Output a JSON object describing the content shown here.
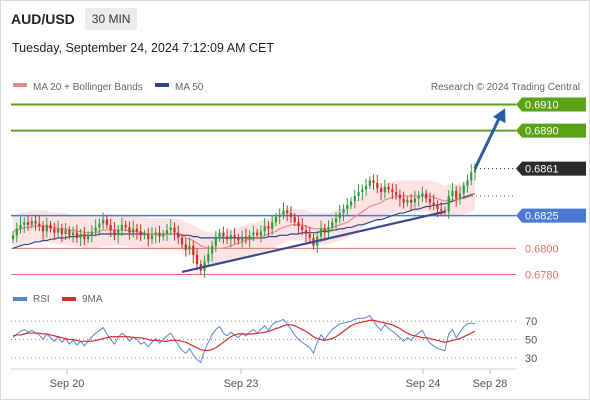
{
  "header": {
    "symbol": "AUD/USD",
    "timeframe": "30 MIN"
  },
  "datetime": "Tuesday, September 24, 2024 7:12:09 AM CET",
  "legend": {
    "ma20": "MA 20 + Bollinger Bands",
    "ma50": "MA 50",
    "copyright": "Research © 2024 Trading Central"
  },
  "rsi_legend": {
    "rsi": "RSI",
    "ma": "9MA"
  },
  "colors": {
    "ma20": "#e98a8a",
    "ma50": "#2c4a86",
    "bands": "#fde3e3",
    "up": "#2f9d3f",
    "down": "#c8302a",
    "target": "#5aa216",
    "pivot": "#4a78d4",
    "support": "#e46e6e",
    "rsi": "#5b86d6",
    "rsi_ma": "#d32f2f",
    "arrow": "#2e5c9e",
    "trendline": "#3a4a8c"
  },
  "chart_data": [
    {
      "type": "candlestick",
      "title": "AUD/USD",
      "subtitle": "30 MIN",
      "x_ticks": [
        "Sep 20",
        "Sep 23",
        "Sep 24",
        "Sep 28"
      ],
      "ylim": [
        0.6772,
        0.6918
      ],
      "levels": [
        {
          "label": "0.6910",
          "value": 0.691,
          "kind": "target"
        },
        {
          "label": "0.6890",
          "value": 0.689,
          "kind": "target"
        },
        {
          "label": "0.6861",
          "value": 0.6861,
          "kind": "last"
        },
        {
          "label": "0.6825",
          "value": 0.6825,
          "kind": "pivot"
        },
        {
          "label": "0.6800",
          "value": 0.68,
          "kind": "support"
        },
        {
          "label": "0.6780",
          "value": 0.678,
          "kind": "support"
        }
      ],
      "closes": [
        0.681,
        0.6815,
        0.6818,
        0.682,
        0.6818,
        0.6821,
        0.6819,
        0.6817,
        0.6813,
        0.6818,
        0.6815,
        0.6812,
        0.6815,
        0.6811,
        0.6814,
        0.681,
        0.6812,
        0.6808,
        0.6811,
        0.6807,
        0.681,
        0.6813,
        0.6816,
        0.6819,
        0.6822,
        0.6818,
        0.6814,
        0.681,
        0.6814,
        0.6818,
        0.6816,
        0.6812,
        0.6815,
        0.6813,
        0.681,
        0.6811,
        0.6807,
        0.681,
        0.6812,
        0.6809,
        0.6811,
        0.6814,
        0.6816,
        0.6812,
        0.6808,
        0.6803,
        0.6799,
        0.6802,
        0.6795,
        0.6788,
        0.6783,
        0.679,
        0.6796,
        0.6802,
        0.6808,
        0.6812,
        0.6809,
        0.6807,
        0.681,
        0.6808,
        0.6806,
        0.6809,
        0.6807,
        0.681,
        0.6812,
        0.681,
        0.6813,
        0.6817,
        0.6815,
        0.682,
        0.6824,
        0.6826,
        0.6829,
        0.6827,
        0.6824,
        0.682,
        0.6817,
        0.6814,
        0.6811,
        0.6808,
        0.6802,
        0.6809,
        0.6815,
        0.6812,
        0.6816,
        0.682,
        0.6823,
        0.6827,
        0.683,
        0.6833,
        0.6836,
        0.684,
        0.6843,
        0.6845,
        0.6848,
        0.6852,
        0.685,
        0.6846,
        0.6843,
        0.6847,
        0.6845,
        0.6843,
        0.6841,
        0.6838,
        0.6835,
        0.6837,
        0.6835,
        0.6838,
        0.684,
        0.6842,
        0.6838,
        0.6835,
        0.6833,
        0.683,
        0.6829,
        0.6828,
        0.684,
        0.6844,
        0.6838,
        0.6842,
        0.6848,
        0.6852,
        0.6858,
        0.6861
      ],
      "ma20": [
        0.6813,
        0.6814,
        0.6815,
        0.6816,
        0.6816,
        0.6817,
        0.6817,
        0.6817,
        0.6817,
        0.6817,
        0.6816,
        0.6816,
        0.6815,
        0.6815,
        0.6815,
        0.6814,
        0.6814,
        0.6813,
        0.6813,
        0.6812,
        0.6812,
        0.6812,
        0.6812,
        0.6813,
        0.6814,
        0.6814,
        0.6814,
        0.6814,
        0.6814,
        0.6814,
        0.6814,
        0.6813,
        0.6813,
        0.6813,
        0.6812,
        0.6812,
        0.6811,
        0.6811,
        0.6811,
        0.6811,
        0.6811,
        0.6811,
        0.6811,
        0.6811,
        0.681,
        0.681,
        0.6808,
        0.6807,
        0.6806,
        0.6804,
        0.6802,
        0.6801,
        0.68,
        0.68,
        0.68,
        0.68,
        0.68,
        0.6801,
        0.6802,
        0.6803,
        0.6804,
        0.6805,
        0.6806,
        0.6807,
        0.6807,
        0.6808,
        0.6809,
        0.681,
        0.6811,
        0.6812,
        0.6813,
        0.6815,
        0.6816,
        0.6817,
        0.6818,
        0.6818,
        0.6818,
        0.6818,
        0.6817,
        0.6816,
        0.6815,
        0.6815,
        0.6815,
        0.6815,
        0.6815,
        0.6816,
        0.6817,
        0.6818,
        0.6819,
        0.682,
        0.6822,
        0.6824,
        0.6826,
        0.6828,
        0.683,
        0.6832,
        0.6833,
        0.6834,
        0.6835,
        0.6837,
        0.6838,
        0.6839,
        0.684,
        0.684,
        0.684,
        0.684,
        0.684,
        0.684,
        0.684,
        0.684,
        0.684,
        0.684,
        0.6839,
        0.6838,
        0.6837,
        0.6836,
        0.6837,
        0.6837,
        0.6837,
        0.6838,
        0.6838,
        0.6839,
        0.684,
        0.6842
      ],
      "ma50": [
        0.68,
        0.6801,
        0.6802,
        0.6803,
        0.6803,
        0.6804,
        0.6805,
        0.6805,
        0.6806,
        0.6806,
        0.6807,
        0.6807,
        0.6808,
        0.6808,
        0.6808,
        0.6809,
        0.6809,
        0.6809,
        0.681,
        0.681,
        0.681,
        0.681,
        0.681,
        0.6811,
        0.6811,
        0.6811,
        0.6811,
        0.6811,
        0.6811,
        0.6811,
        0.6811,
        0.6811,
        0.6811,
        0.6811,
        0.6811,
        0.6811,
        0.6811,
        0.6811,
        0.6811,
        0.6811,
        0.6811,
        0.6811,
        0.6811,
        0.6811,
        0.6811,
        0.681,
        0.681,
        0.681,
        0.6809,
        0.6809,
        0.6808,
        0.6808,
        0.6808,
        0.6808,
        0.6808,
        0.6808,
        0.6808,
        0.6808,
        0.6808,
        0.6808,
        0.6808,
        0.6808,
        0.6808,
        0.6808,
        0.6808,
        0.6808,
        0.6808,
        0.6808,
        0.6809,
        0.6809,
        0.6809,
        0.681,
        0.681,
        0.681,
        0.6811,
        0.6811,
        0.6811,
        0.6812,
        0.6812,
        0.6812,
        0.6812,
        0.6812,
        0.6813,
        0.6813,
        0.6813,
        0.6814,
        0.6814,
        0.6815,
        0.6815,
        0.6816,
        0.6816,
        0.6817,
        0.6818,
        0.6818,
        0.6819,
        0.682,
        0.6821,
        0.6822,
        0.6822,
        0.6823,
        0.6824,
        0.6825,
        0.6826,
        0.6827,
        0.6827,
        0.6828,
        0.6829,
        0.683,
        0.683,
        0.6831,
        0.6832,
        0.6832,
        0.6833,
        0.6833,
        0.6834,
        0.6834,
        0.6835,
        0.6836,
        0.6837,
        0.6838,
        0.6839,
        0.684,
        0.6841,
        0.6842
      ],
      "trendline": [
        [
          45,
          0.6782
        ],
        [
          115,
          0.6828
        ]
      ],
      "projection": [
        [
          123,
          0.6861
        ],
        [
          131,
          0.6907
        ]
      ]
    },
    {
      "type": "line",
      "title": "RSI",
      "series": [
        {
          "name": "RSI"
        },
        {
          "name": "9MA"
        }
      ],
      "ylim": [
        20,
        80
      ],
      "y_ticks": [
        "70",
        "50",
        "30"
      ],
      "rsi": [
        52,
        56,
        59,
        61,
        58,
        60,
        57,
        55,
        50,
        56,
        52,
        48,
        53,
        47,
        51,
        45,
        49,
        44,
        48,
        43,
        48,
        53,
        57,
        60,
        63,
        56,
        50,
        45,
        52,
        57,
        54,
        48,
        53,
        50,
        45,
        47,
        42,
        47,
        51,
        46,
        50,
        54,
        57,
        50,
        44,
        38,
        35,
        40,
        33,
        28,
        25,
        38,
        47,
        55,
        61,
        64,
        57,
        54,
        58,
        55,
        52,
        57,
        54,
        58,
        61,
        57,
        61,
        65,
        60,
        66,
        69,
        70,
        72,
        67,
        61,
        55,
        50,
        47,
        44,
        41,
        35,
        47,
        55,
        50,
        56,
        61,
        64,
        67,
        68,
        69,
        70,
        72,
        73,
        73,
        74,
        76,
        70,
        64,
        60,
        66,
        62,
        59,
        56,
        52,
        48,
        52,
        49,
        54,
        57,
        60,
        52,
        46,
        43,
        40,
        39,
        38,
        56,
        61,
        52,
        58,
        64,
        67,
        68,
        67
      ],
      "rsi_ma": [
        54,
        55,
        55,
        56,
        57,
        57,
        57,
        57,
        56,
        56,
        55,
        54,
        53,
        52,
        51,
        50,
        50,
        49,
        48,
        48,
        48,
        48,
        49,
        50,
        51,
        52,
        53,
        53,
        53,
        53,
        53,
        53,
        52,
        52,
        52,
        51,
        50,
        49,
        49,
        49,
        48,
        48,
        49,
        49,
        49,
        48,
        47,
        45,
        43,
        41,
        39,
        38,
        38,
        39,
        41,
        44,
        47,
        50,
        53,
        55,
        56,
        56,
        56,
        56,
        56,
        57,
        57,
        58,
        59,
        60,
        62,
        63,
        65,
        66,
        66,
        65,
        63,
        61,
        59,
        56,
        53,
        51,
        50,
        49,
        50,
        51,
        53,
        56,
        59,
        62,
        65,
        67,
        68,
        69,
        70,
        71,
        71,
        70,
        69,
        68,
        67,
        66,
        64,
        62,
        59,
        57,
        55,
        54,
        53,
        52,
        52,
        51,
        50,
        49,
        48,
        47,
        48,
        49,
        50,
        51,
        53,
        55,
        57,
        59
      ]
    }
  ]
}
